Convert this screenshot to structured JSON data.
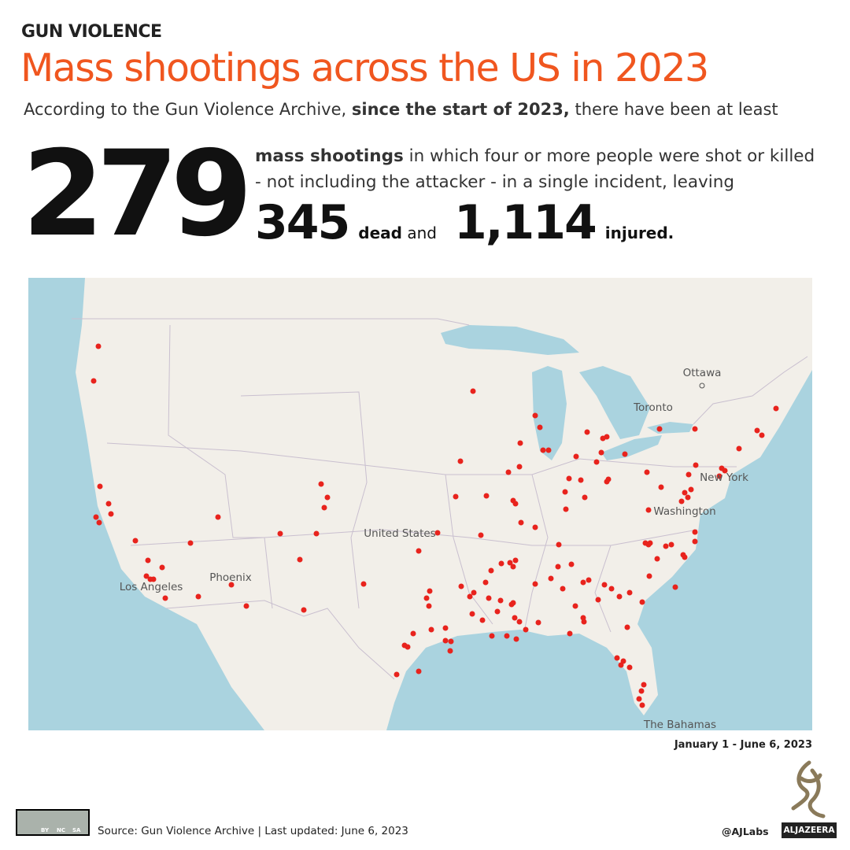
{
  "header": {
    "kicker": "GUN VIOLENCE",
    "title": "Mass shootings across the US in 2023",
    "intro_prefix": "According to the Gun Violence Archive,",
    "intro_bold": "since the start of 2023,",
    "intro_suffix": "there have been at least"
  },
  "stats": {
    "shootings": 279,
    "shootings_label": "mass shootings",
    "description": "in which four or more people were shot or killed - not including the attacker - in a single incident, leaving",
    "dead": 345,
    "dead_label": "dead",
    "and": "and",
    "injured": "1,114",
    "injured_label": "injured."
  },
  "map": {
    "labels": [
      "Ottawa",
      "Toronto",
      "New York",
      "Washington",
      "United States",
      "Phoenix",
      "Los Angeles",
      "The Bahamas"
    ],
    "date_range": "January 1 - June 6, 2023"
  },
  "footer": {
    "license": [
      "BY",
      "NC",
      "SA"
    ],
    "source": "Source: Gun Violence Archive | Last updated: June 6, 2023",
    "handle": "@AJLabs",
    "brand": "ALJAZEERA"
  }
}
